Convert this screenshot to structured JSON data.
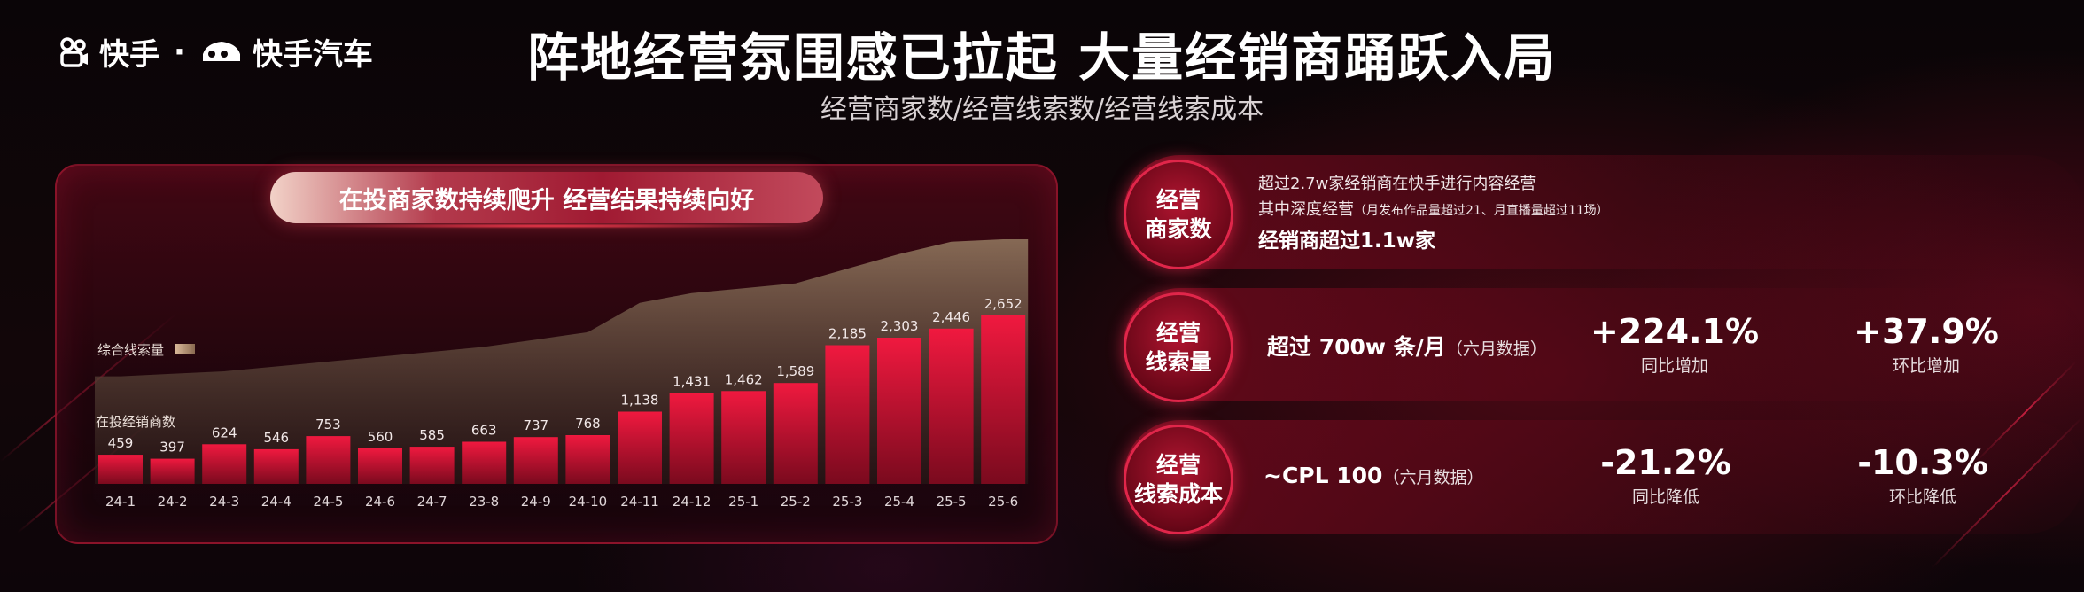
{
  "header": {
    "logo_kuaishou": "快手",
    "logo_separator": "·",
    "logo_auto": "快手汽车",
    "title": "阵地经营氛围感已拉起 大量经销商踊跃入局",
    "subtitle": "经营商家数/经营线索数/经营线索成本"
  },
  "chart_panel": {
    "banner": "在投商家数持续爬升 经营结果持续向好",
    "legend_area_label": "综合线索量",
    "bar_series_label": "在投经销商数"
  },
  "chart_data": {
    "type": "bar",
    "categories": [
      "24-1",
      "24-2",
      "24-3",
      "24-4",
      "24-5",
      "24-6",
      "24-7",
      "23-8",
      "24-9",
      "24-10",
      "24-11",
      "24-12",
      "25-1",
      "25-2",
      "25-3",
      "25-4",
      "25-5",
      "25-6"
    ],
    "series": [
      {
        "name": "在投经销商数",
        "type": "bar",
        "values": [
          459,
          397,
          624,
          546,
          753,
          560,
          585,
          663,
          737,
          768,
          1138,
          1431,
          1462,
          1589,
          2185,
          2303,
          2446,
          2652
        ]
      },
      {
        "name": "综合线索量",
        "type": "area",
        "relative_values": [
          0.44,
          0.45,
          0.46,
          0.48,
          0.5,
          0.52,
          0.54,
          0.56,
          0.59,
          0.62,
          0.74,
          0.78,
          0.8,
          0.82,
          0.88,
          0.94,
          0.99,
          1.0
        ]
      }
    ],
    "colors": {
      "bar_top": "#e8153a",
      "bar_bottom": "#7a0a1e",
      "area_top": "#8a6e58",
      "area_bottom": "#2a1a18"
    }
  },
  "metrics": [
    {
      "label_line1": "经营",
      "label_line2": "商家数",
      "desc_line1": "超过2.7w家经销商在快手进行内容经营",
      "desc_line2_main": "其中深度经营",
      "desc_line2_note": "（月发布作品量超过21、月直播量超过11场）",
      "desc_line3": "经销商超过1.1w家"
    },
    {
      "label_line1": "经营",
      "label_line2": "线索量",
      "main_value": "超过 700w 条/月",
      "main_note": "（六月数据）",
      "stats": [
        {
          "value": "+224.1%",
          "label": "同比增加"
        },
        {
          "value": "+37.9%",
          "label": "环比增加"
        }
      ]
    },
    {
      "label_line1": "经营",
      "label_line2": "线索成本",
      "main_value": "~CPL 100",
      "main_note": "（六月数据）",
      "stats": [
        {
          "value": "-21.2%",
          "label": "同比降低"
        },
        {
          "value": "-10.3%",
          "label": "环比降低"
        }
      ]
    }
  ]
}
